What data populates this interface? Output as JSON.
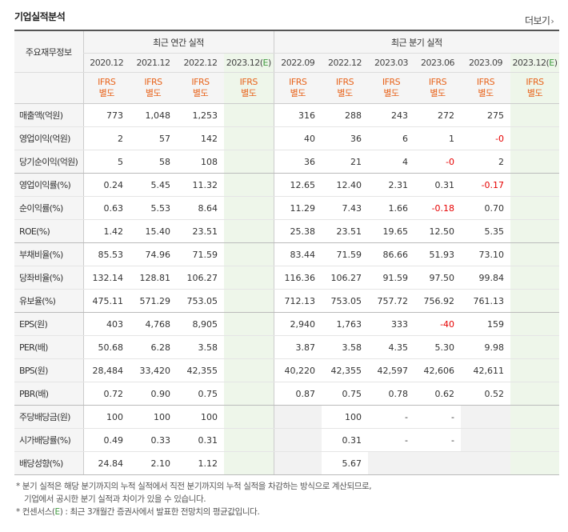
{
  "title": "기업실적분석",
  "more_label": "더보기",
  "header": {
    "row_label": "주요재무정보",
    "annual_group": "최근 연간 실적",
    "quarter_group": "최근 분기 실적",
    "annual_dates": [
      "2020.12",
      "2021.12",
      "2022.12"
    ],
    "annual_est": {
      "base": "2023.12",
      "mark": "E"
    },
    "quarter_dates": [
      "2022.09",
      "2022.12",
      "2023.03",
      "2023.06",
      "2023.09"
    ],
    "quarter_est": {
      "base": "2023.12",
      "mark": "E"
    },
    "ifrs_line1": "IFRS",
    "ifrs_line2": "별도"
  },
  "rows": [
    {
      "label": "매출액(억원)",
      "annual": [
        "773",
        "1,048",
        "1,253",
        ""
      ],
      "quarter": [
        "316",
        "288",
        "243",
        "272",
        "275",
        ""
      ]
    },
    {
      "label": "영업이익(억원)",
      "annual": [
        "2",
        "57",
        "142",
        ""
      ],
      "quarter": [
        "40",
        "36",
        "6",
        "1",
        "-0",
        ""
      ]
    },
    {
      "label": "당기순이익(억원)",
      "annual": [
        "5",
        "58",
        "108",
        ""
      ],
      "quarter": [
        "36",
        "21",
        "4",
        "-0",
        "2",
        ""
      ]
    },
    {
      "label": "영업이익률(%)",
      "annual": [
        "0.24",
        "5.45",
        "11.32",
        ""
      ],
      "quarter": [
        "12.65",
        "12.40",
        "2.31",
        "0.31",
        "-0.17",
        ""
      ]
    },
    {
      "label": "순이익률(%)",
      "annual": [
        "0.63",
        "5.53",
        "8.64",
        ""
      ],
      "quarter": [
        "11.29",
        "7.43",
        "1.66",
        "-0.18",
        "0.70",
        ""
      ]
    },
    {
      "label": "ROE(%)",
      "annual": [
        "1.42",
        "15.40",
        "23.51",
        ""
      ],
      "quarter": [
        "25.38",
        "23.51",
        "19.65",
        "12.50",
        "5.35",
        ""
      ]
    },
    {
      "label": "부채비율(%)",
      "annual": [
        "85.53",
        "74.96",
        "71.59",
        ""
      ],
      "quarter": [
        "83.44",
        "71.59",
        "86.66",
        "51.93",
        "73.10",
        ""
      ]
    },
    {
      "label": "당좌비율(%)",
      "annual": [
        "132.14",
        "128.81",
        "106.27",
        ""
      ],
      "quarter": [
        "116.36",
        "106.27",
        "91.59",
        "97.50",
        "99.84",
        ""
      ]
    },
    {
      "label": "유보율(%)",
      "annual": [
        "475.11",
        "571.29",
        "753.05",
        ""
      ],
      "quarter": [
        "712.13",
        "753.05",
        "757.72",
        "756.92",
        "761.13",
        ""
      ]
    },
    {
      "label": "EPS(원)",
      "annual": [
        "403",
        "4,768",
        "8,905",
        ""
      ],
      "quarter": [
        "2,940",
        "1,763",
        "333",
        "-40",
        "159",
        ""
      ]
    },
    {
      "label": "PER(배)",
      "annual": [
        "50.68",
        "6.28",
        "3.58",
        ""
      ],
      "quarter": [
        "3.87",
        "3.58",
        "4.35",
        "5.30",
        "9.98",
        ""
      ]
    },
    {
      "label": "BPS(원)",
      "annual": [
        "28,484",
        "33,420",
        "42,355",
        ""
      ],
      "quarter": [
        "40,220",
        "42,355",
        "42,597",
        "42,606",
        "42,611",
        ""
      ]
    },
    {
      "label": "PBR(배)",
      "annual": [
        "0.72",
        "0.90",
        "0.75",
        ""
      ],
      "quarter": [
        "0.87",
        "0.75",
        "0.78",
        "0.62",
        "0.52",
        ""
      ]
    },
    {
      "label": "주당배당금(원)",
      "annual": [
        "100",
        "100",
        "100",
        ""
      ],
      "quarter": [
        "",
        "100",
        "-",
        "-",
        "",
        ""
      ]
    },
    {
      "label": "시가배당률(%)",
      "annual": [
        "0.49",
        "0.33",
        "0.31",
        ""
      ],
      "quarter": [
        "",
        "0.31",
        "-",
        "-",
        "",
        ""
      ]
    },
    {
      "label": "배당성향(%)",
      "annual": [
        "24.84",
        "2.10",
        "1.12",
        ""
      ],
      "quarter": [
        "",
        "5.67",
        "",
        "",
        "",
        ""
      ]
    }
  ],
  "notes": {
    "line1": "분기 실적은 해당 분기까지의 누적 실적에서 직전 분기까지의 누적 실적을 차감하는 방식으로 계산되므로,",
    "line2": "기업에서 공시한 분기 실적과 차이가 있을 수 있습니다.",
    "line3_prefix": "컨센서스(",
    "line3_mark": "E",
    "line3_suffix": ") : 최근 3개월간 증권사에서 발표한 전망치의 평균값입니다."
  }
}
